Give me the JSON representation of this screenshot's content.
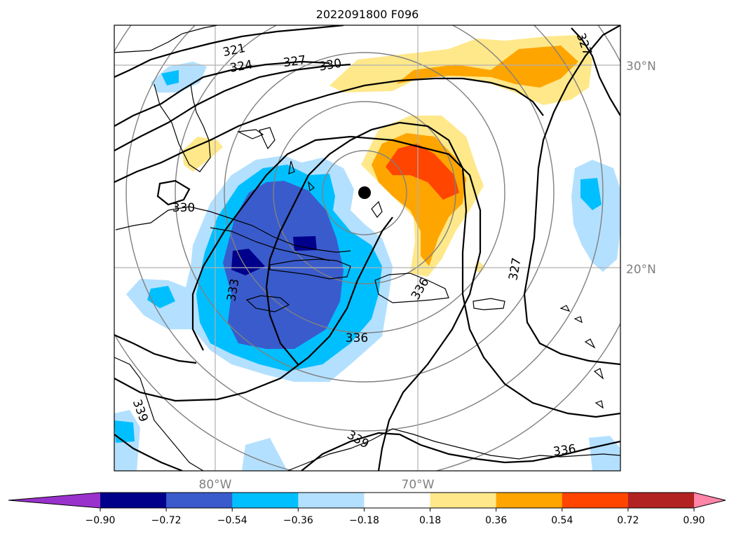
{
  "title": "2022091800 F096",
  "map": {
    "lat_labels": [
      "30°N",
      "20°N"
    ],
    "lon_labels": [
      "80°W",
      "70°W"
    ],
    "contour_labels": [
      "321",
      "324",
      "327",
      "330",
      "330",
      "333",
      "336",
      "336",
      "339",
      "339",
      "336",
      "327",
      "327"
    ],
    "center_marker": "filled-circle"
  },
  "colorbar": {
    "ticks": [
      "−0.90",
      "−0.72",
      "−0.54",
      "−0.36",
      "−0.18",
      "0.18",
      "0.36",
      "0.54",
      "0.72",
      "0.90"
    ],
    "colors": [
      "#9932cc",
      "#00008b",
      "#3a5bcc",
      "#00bfff",
      "#b3e0ff",
      "#ffffff",
      "#ffe88a",
      "#ffa500",
      "#ff4500",
      "#b22222",
      "#ff85a8"
    ],
    "extend": "both"
  }
}
